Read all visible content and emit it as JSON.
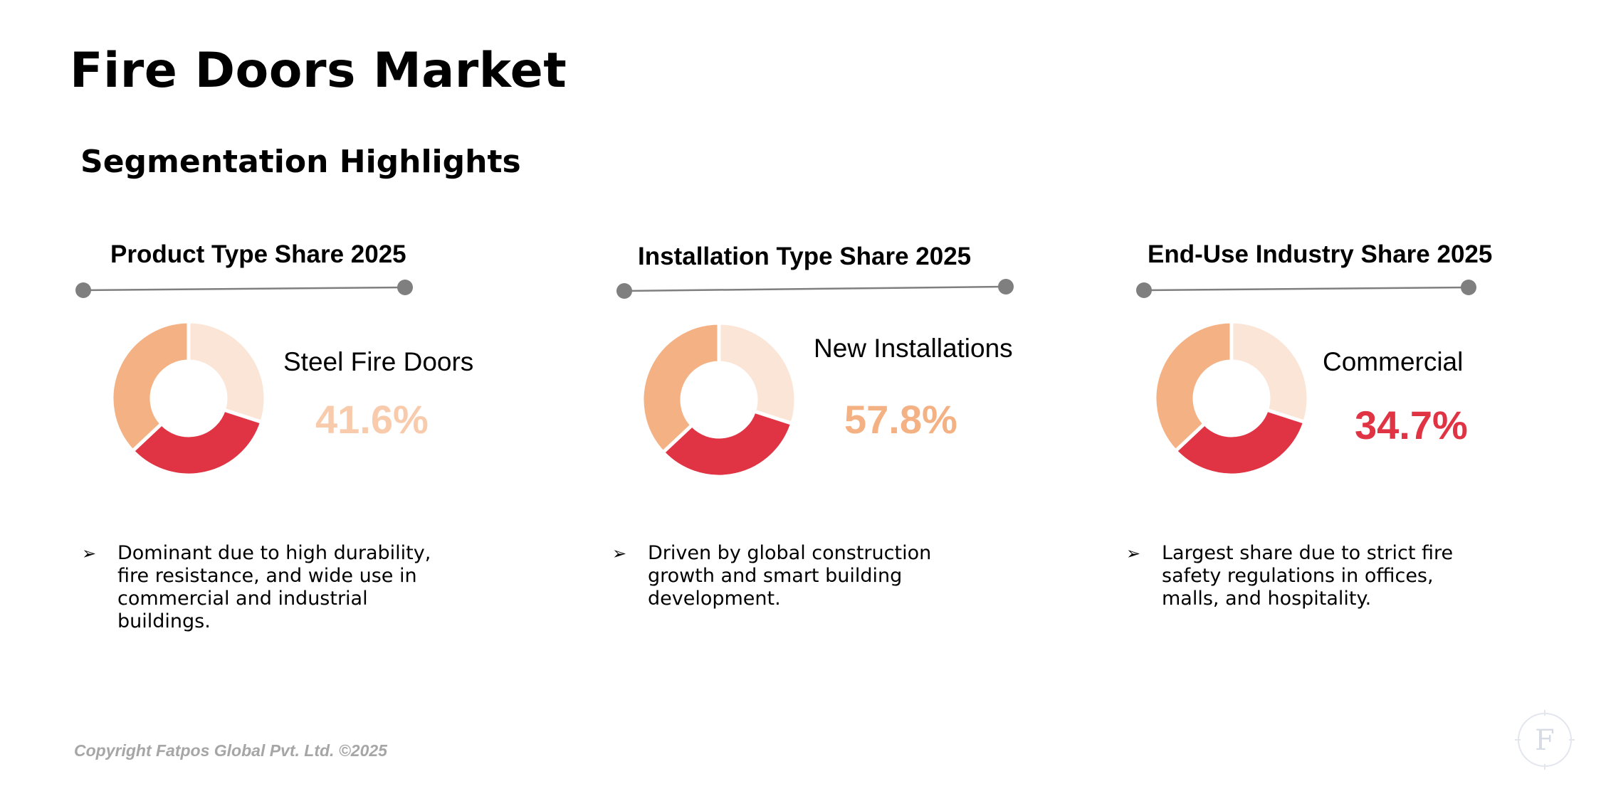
{
  "page": {
    "title": "Fire Doors Market",
    "subtitle": "Segmentation Highlights",
    "copyright": "Copyright Fatpos Global Pvt. Ltd. ©2025",
    "logo_letter": "F"
  },
  "colors": {
    "light_peach": "#fbe5d6",
    "red": "#e03444",
    "orange": "#f4b183",
    "connector": "#7f7f7f"
  },
  "chart_data": [
    {
      "type": "pie",
      "title": "Product Type Share 2025",
      "highlight": {
        "label": "Steel Fire Doors",
        "value_text": "41.6%",
        "color": "#f8cbad"
      },
      "segments": [
        {
          "value": 0.3,
          "color": "#fbe5d6"
        },
        {
          "value": 0.33,
          "color": "#e03444"
        },
        {
          "value": 0.37,
          "color": "#f4b183"
        }
      ],
      "bullet": "Dominant due to high durability, fire resistance, and wide use in commercial and industrial buildings."
    },
    {
      "type": "pie",
      "title": "Installation Type Share 2025",
      "highlight": {
        "label": "New Installations",
        "value_text": "57.8%",
        "color": "#f4b183"
      },
      "segments": [
        {
          "value": 0.3,
          "color": "#fbe5d6"
        },
        {
          "value": 0.33,
          "color": "#e03444"
        },
        {
          "value": 0.37,
          "color": "#f4b183"
        }
      ],
      "bullet": "Driven by global construction growth and smart building development."
    },
    {
      "type": "pie",
      "title": "End-Use Industry Share 2025",
      "highlight": {
        "label": "Commercial",
        "value_text": "34.7%",
        "color": "#e03444"
      },
      "segments": [
        {
          "value": 0.3,
          "color": "#fbe5d6"
        },
        {
          "value": 0.33,
          "color": "#e03444"
        },
        {
          "value": 0.37,
          "color": "#f4b183"
        }
      ],
      "bullet": "Largest share due to strict fire safety regulations in offices, malls, and hospitality."
    }
  ]
}
